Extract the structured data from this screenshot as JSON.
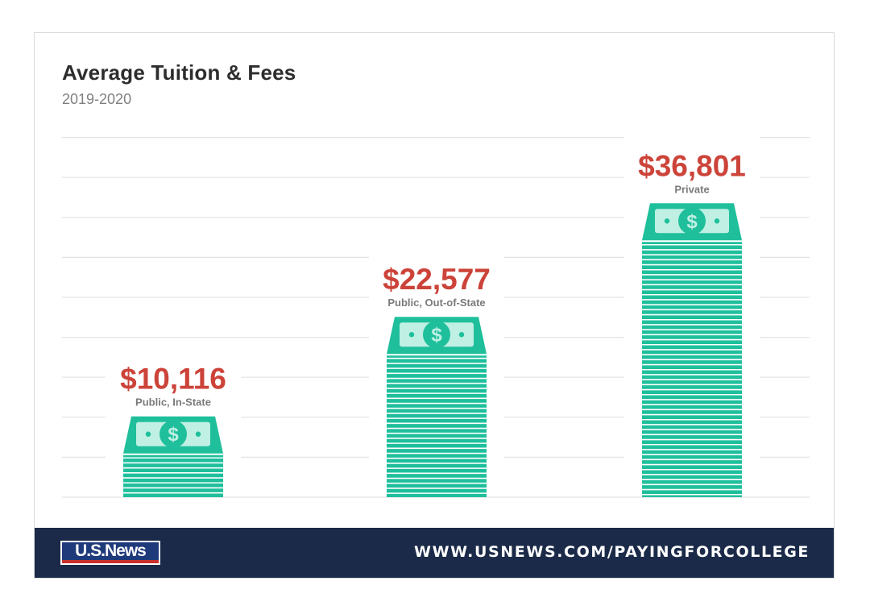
{
  "header": {
    "title": "Average Tuition & Fees",
    "subtitle": "2019-2020"
  },
  "footer": {
    "logo_text": "U.S.News",
    "url": "WWW.USNEWS.COM/PAYINGFORCOLLEGE"
  },
  "colors": {
    "bill": "#1fbf9c",
    "bill_light": "#bff0e3",
    "value_text": "#cc4339",
    "footer_bg": "#1b2a48",
    "gridline": "#e3e3e3"
  },
  "icons": {
    "bill": "dollar-bill-icon"
  },
  "chart_data": {
    "type": "bar",
    "title": "Average Tuition & Fees",
    "subtitle": "2019-2020",
    "categories": [
      "Public, In-State",
      "Public, Out-of-State",
      "Private"
    ],
    "values": [
      10116,
      22577,
      36801
    ],
    "value_labels": [
      "$10,116",
      "$22,577",
      "$36,801"
    ],
    "ylim": [
      0,
      45000
    ],
    "grid": true,
    "legend": "none"
  }
}
